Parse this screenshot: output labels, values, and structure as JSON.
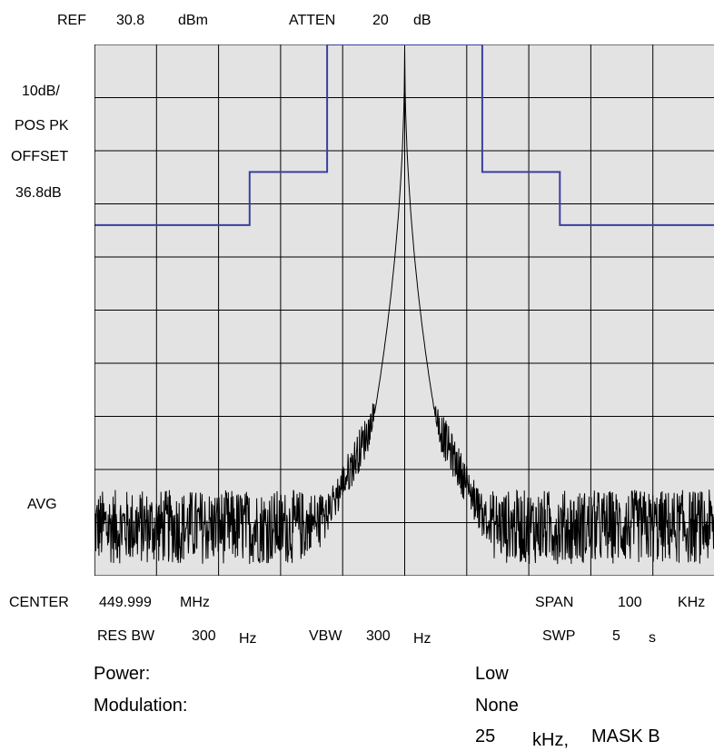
{
  "header": {
    "ref_label": "REF",
    "ref_value": "30.8",
    "ref_unit": "dBm",
    "atten_label": "ATTEN",
    "atten_value": "20",
    "atten_unit": "dB"
  },
  "left_panel": {
    "scale": "10dB/",
    "detector": "POS PK",
    "offset_label": "OFFSET",
    "offset_value": "36.8dB",
    "trace_mode": "AVG"
  },
  "footer": {
    "center_label": "CENTER",
    "center_value": "449.999",
    "center_unit": "MHz",
    "span_label": "SPAN",
    "span_value": "100",
    "span_unit": "KHz",
    "rbw_label": "RES BW",
    "rbw_value": "300",
    "rbw_unit": "Hz",
    "vbw_label": "VBW",
    "vbw_value": "300",
    "vbw_unit": "Hz",
    "swp_label": "SWP",
    "swp_value": "5",
    "swp_unit": "s"
  },
  "info": {
    "power_label": "Power:",
    "power_value": "Low",
    "modulation_label": "Modulation:",
    "modulation_value": "None",
    "mask_num": "25",
    "mask_unit": "kHz,",
    "mask_name": "MASK B"
  },
  "colors": {
    "plot_bg": "#e3e3e3",
    "grid": "#000000",
    "mask": "#3a3fa0",
    "trace": "#000000"
  },
  "chart_data": {
    "type": "line",
    "x_divisions": 10,
    "y_divisions": 10,
    "xlim": [
      -50,
      50
    ],
    "ylim": [
      -69.2,
      30.8
    ],
    "grid": true,
    "mask": {
      "x": [
        -50,
        -25,
        -25,
        -12.5,
        -12.5,
        12.5,
        12.5,
        25,
        25,
        50
      ],
      "y": [
        -3.2,
        -3.2,
        6.8,
        6.8,
        30.8,
        30.8,
        6.8,
        6.8,
        -3.2,
        -3.2
      ]
    },
    "trace": {
      "peak_x": 0,
      "peak_y": 30.3,
      "noise_floor_y": -60,
      "noise_min_y": -67,
      "noise_max_y": -53
    }
  }
}
